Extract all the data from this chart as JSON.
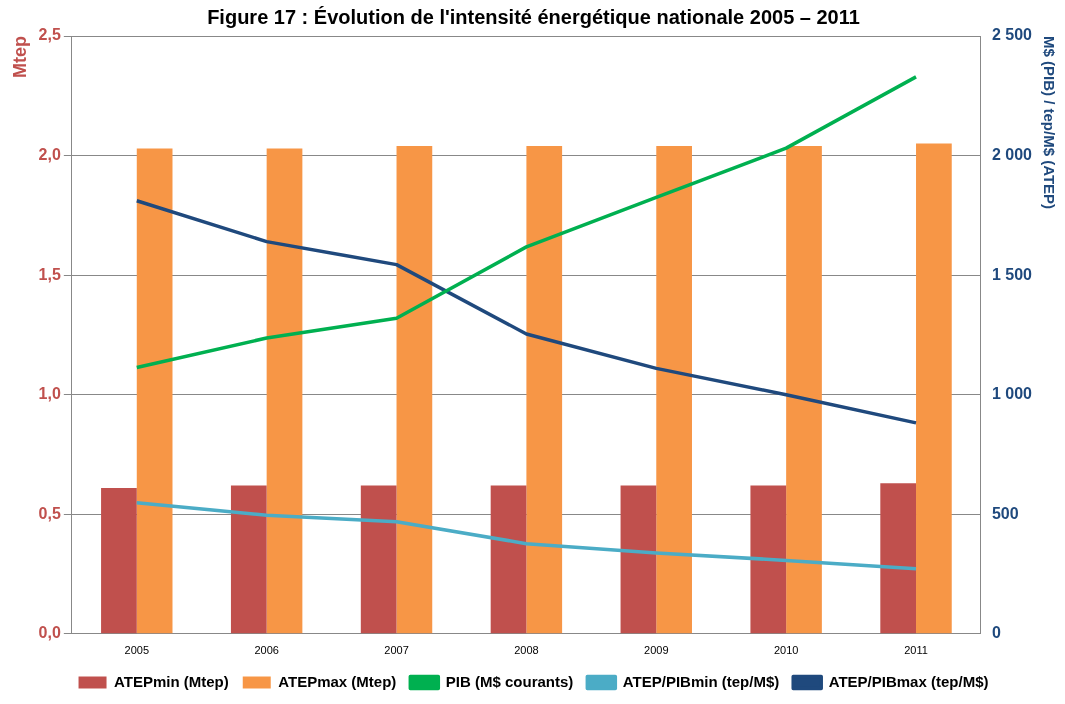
{
  "chart_data": {
    "type": "bar",
    "title": "Figure 17 : Évolution de l'intensité énergétique nationale 2005 – 2011",
    "ylabel": "Mtep",
    "y2label": "M$ (PIB) / tep/M$ (ATEP)",
    "categories": [
      "2005",
      "2006",
      "2007",
      "2008",
      "2009",
      "2010",
      "2011"
    ],
    "series": [
      {
        "name": "ATEPmin (Mtep)",
        "color": "#c0504d",
        "values": [
          0.61,
          0.62,
          0.62,
          0.62,
          0.62,
          0.62,
          0.63
        ]
      },
      {
        "name": "ATEPmax (Mtep)",
        "color": "#f79646",
        "values": [
          2.03,
          2.03,
          2.04,
          2.04,
          2.04,
          2.04,
          2.05
        ]
      },
      {
        "name": "PIB (M$ courants)",
        "type": "line",
        "axis": "y2",
        "color": "#00b050",
        "values": [
          1114,
          1237,
          1320,
          1618,
          1825,
          2031,
          2329
        ]
      },
      {
        "name": "ATEP/PIBmin (tep/M$)",
        "type": "line",
        "axis": "y2",
        "color": "#4bacc6",
        "values": [
          548,
          496,
          469,
          377,
          338,
          307,
          272
        ]
      },
      {
        "name": "ATEP/PIBmax (tep/M$)",
        "type": "line",
        "axis": "y2",
        "color": "#1f497d",
        "values": [
          1811,
          1640,
          1544,
          1254,
          1110,
          1000,
          882
        ]
      }
    ],
    "ylim": [
      0,
      2.5
    ],
    "yticks": [
      {
        "value": 0,
        "label": "0,0"
      },
      {
        "value": 0.5,
        "label": "0,5"
      },
      {
        "value": 1,
        "label": "1,0"
      },
      {
        "value": 1.5,
        "label": "1,5"
      },
      {
        "value": 2,
        "label": "2,0"
      },
      {
        "value": 2.5,
        "label": "2,5"
      }
    ],
    "y2lim": [
      0,
      2500
    ],
    "y2ticks": [
      0,
      500,
      {
        "value": 1000,
        "label": "1 000"
      },
      {
        "value": 1500,
        "label": "1 500"
      },
      {
        "value": 2000,
        "label": "2 000"
      },
      {
        "value": 2500,
        "label": "2 500"
      }
    ],
    "grid": "y",
    "legend": "bottom",
    "marker": "none",
    "line_style": "solid"
  }
}
